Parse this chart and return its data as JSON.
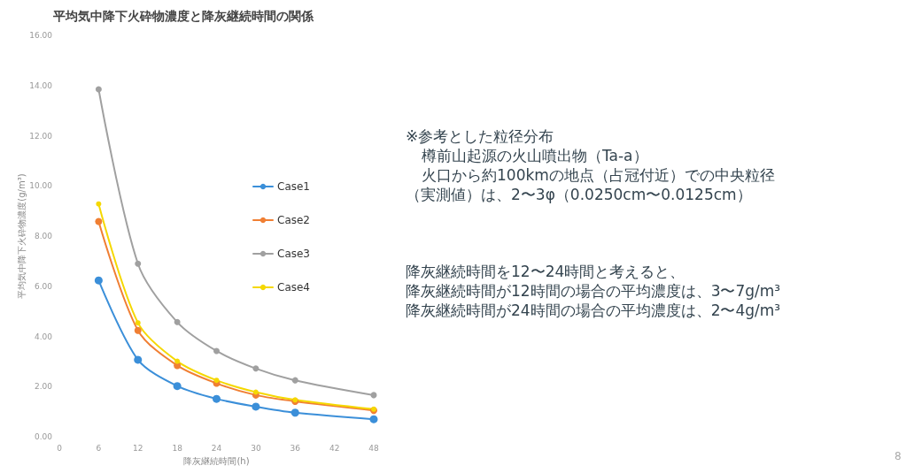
{
  "chart_data": {
    "type": "line",
    "title": "平均気中降下火砕物濃度と降灰継続時間の関係",
    "xlabel": "降灰継続時間(h)",
    "ylabel": "平均気中降下火砕物濃度(g/m³)",
    "x": [
      6,
      12,
      18,
      24,
      30,
      36,
      48
    ],
    "series": [
      {
        "name": "Case1",
        "color": "#3b8fd9",
        "values": [
          6.23,
          3.07,
          2.02,
          1.51,
          1.2,
          0.96,
          0.7
        ]
      },
      {
        "name": "Case2",
        "color": "#f07f33",
        "values": [
          8.58,
          4.24,
          2.84,
          2.13,
          1.66,
          1.41,
          1.05
        ]
      },
      {
        "name": "Case3",
        "color": "#a0a0a0",
        "values": [
          13.85,
          6.9,
          4.57,
          3.42,
          2.72,
          2.25,
          1.66
        ]
      },
      {
        "name": "Case4",
        "color": "#f5d800",
        "values": [
          9.28,
          4.54,
          3.01,
          2.25,
          1.78,
          1.47,
          1.1
        ]
      }
    ],
    "xlim": [
      0,
      48
    ],
    "xticks": [
      0,
      6,
      12,
      18,
      24,
      30,
      36,
      42,
      48
    ],
    "ylim": [
      0,
      16
    ],
    "yticks": [
      {
        "value": 0,
        "label": "0.00"
      },
      {
        "value": 2,
        "label": "2.00"
      },
      {
        "value": 4,
        "label": "4.00"
      },
      {
        "value": 6,
        "label": "6.00"
      },
      {
        "value": 8,
        "label": "8.00"
      },
      {
        "value": 10,
        "label": "10.00"
      },
      {
        "value": 12,
        "label": "12.00"
      },
      {
        "value": 14,
        "label": "14.00"
      },
      {
        "value": 16,
        "label": "16.00"
      }
    ],
    "grid": false,
    "legend": "right",
    "marker": "circle",
    "line_style": "solid",
    "annotations": [
      "※参考とした粒径分布",
      "樽前山起源の火山噴出物（Ta-a）",
      "火口から約100kmの地点（占冠付近）での中央粒径",
      "（実測値）は、2〜3φ（0.0250cm〜0.0125cm）",
      "降灰継続時間を12〜24時間と考えると、",
      "降灰継続時間が12時間の場合の平均濃度は、3〜7g/m³",
      "降灰継続時間が24時間の場合の平均濃度は、2〜4g/m³",
      "8"
    ]
  }
}
